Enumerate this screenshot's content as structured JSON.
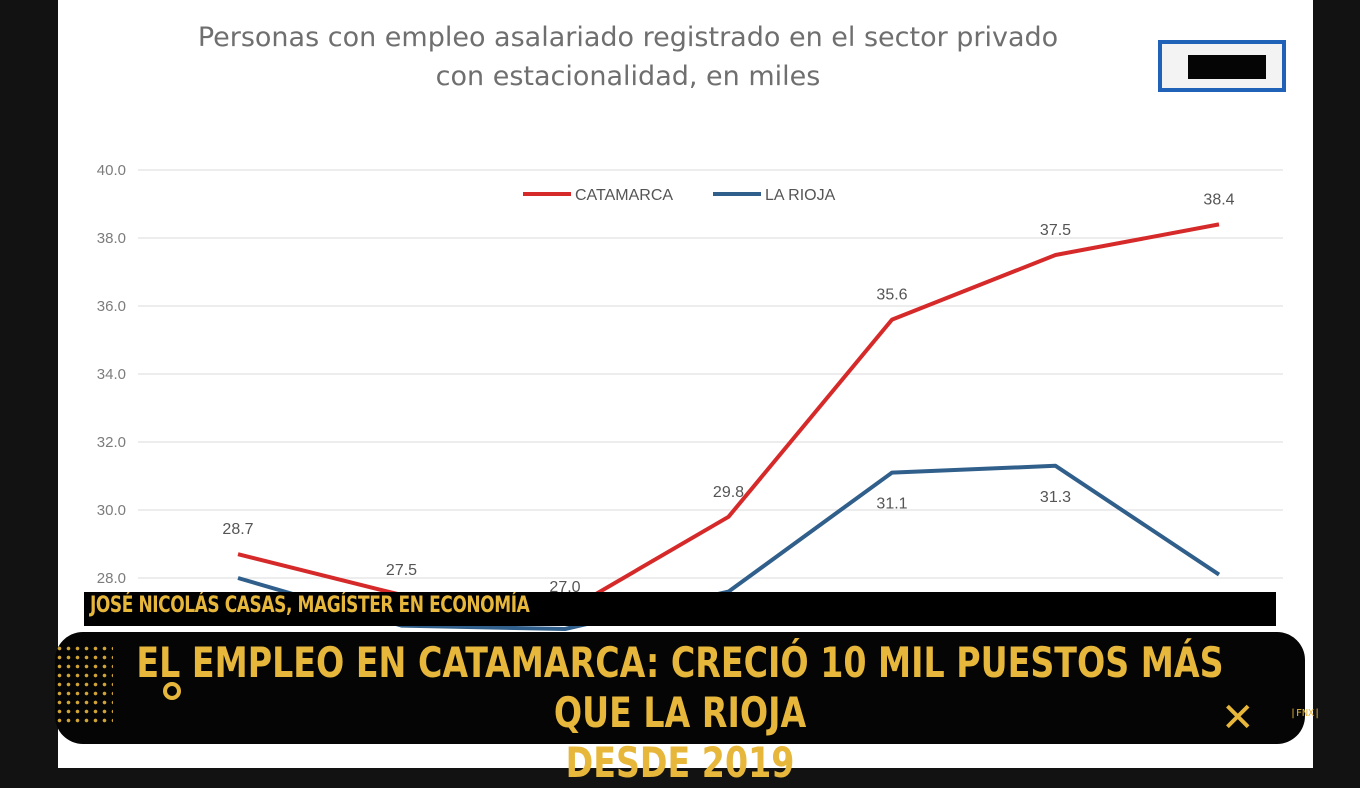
{
  "chart_data": {
    "type": "line",
    "title": "Personas con empleo asalariado registrado en el sector privado con estacionalidad, en miles",
    "ylim": [
      26.0,
      40.0
    ],
    "yticks": [
      "40.0",
      "38.0",
      "36.0",
      "34.0",
      "32.0",
      "30.0",
      "28.0"
    ],
    "categories": [
      "",
      "",
      "",
      "",
      "",
      "",
      ""
    ],
    "legend_position": "top-center",
    "grid": true,
    "series": [
      {
        "name": "CATAMARCA",
        "color": "#d62a2a",
        "values": [
          28.7,
          27.5,
          27.0,
          29.8,
          35.6,
          37.5,
          38.4
        ],
        "labels": [
          "28.7",
          "27.5",
          "27.0",
          "29.8",
          "35.6",
          "37.5",
          "38.4"
        ]
      },
      {
        "name": "LA RIOJA",
        "color": "#2f5f8a",
        "values": [
          28.0,
          26.6,
          26.5,
          27.6,
          31.1,
          31.3,
          28.1
        ],
        "labels": [
          "",
          "",
          "",
          "",
          "31.1",
          "31.3",
          ""
        ]
      }
    ]
  },
  "overlay": {
    "name_caption": "JOSÉ NICOLÁS CASAS, MAGÍSTER EN ECONOMÍA",
    "headline_line1": "EL EMPLEO EN CATAMARCA: CRECIÓ 10 MIL PUESTOS MÁS QUE LA RIOJA",
    "headline_line2": "DESDE 2019",
    "close_symbol": "✕",
    "watermark": "|FNX|"
  },
  "colors": {
    "accent": "#e7b73c",
    "bar_bg": "#050505",
    "logo_border": "#1f62b8"
  }
}
